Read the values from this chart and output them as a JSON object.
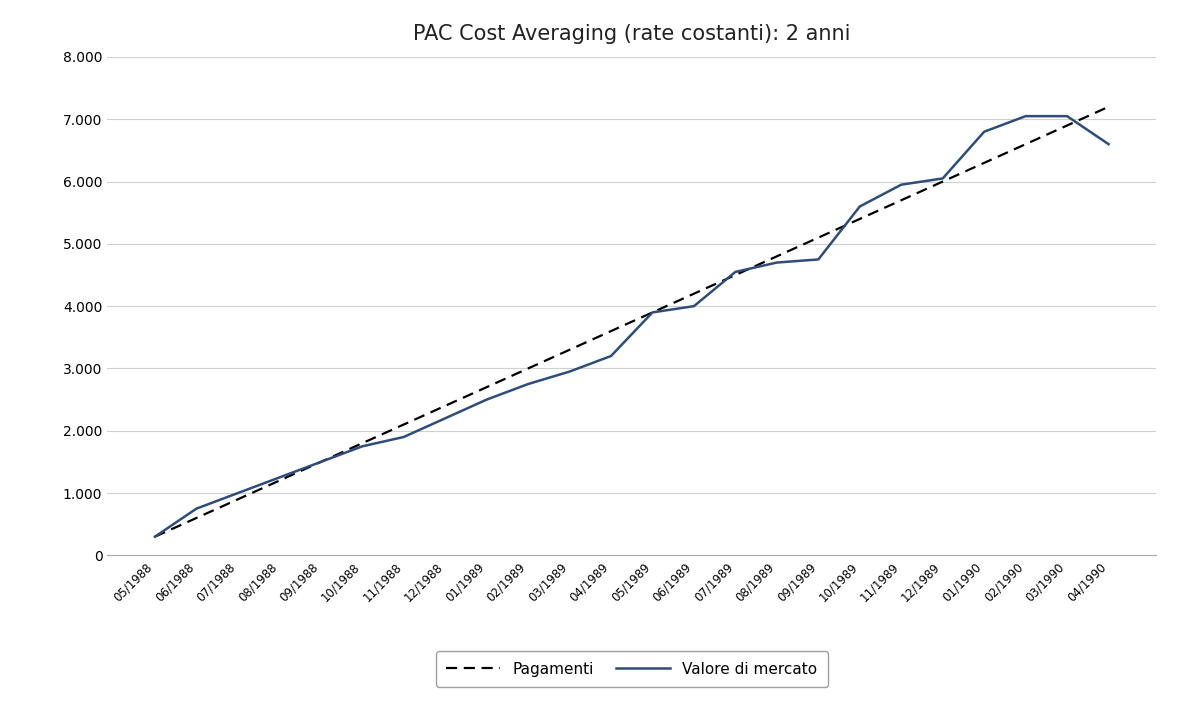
{
  "title": "PAC Cost Averaging (rate costanti): 2 anni",
  "x_labels": [
    "05/1988",
    "06/1988",
    "07/1988",
    "08/1988",
    "09/1988",
    "10/1988",
    "11/1988",
    "12/1988",
    "01/1989",
    "02/1989",
    "03/1989",
    "04/1989",
    "05/1989",
    "06/1989",
    "07/1989",
    "08/1989",
    "09/1989",
    "10/1989",
    "11/1989",
    "12/1989",
    "01/1990",
    "02/1990",
    "03/1990",
    "04/1990"
  ],
  "pagamenti": [
    300,
    600,
    900,
    1200,
    1500,
    1800,
    2100,
    2400,
    2700,
    3000,
    3300,
    3600,
    3900,
    4200,
    4500,
    4800,
    5100,
    5400,
    5700,
    6000,
    6300,
    6600,
    6900,
    7200
  ],
  "valore_mercato_values": [
    300,
    750,
    1000,
    1250,
    1500,
    1750,
    1900,
    2200,
    2500,
    2750,
    2950,
    3200,
    3900,
    4000,
    4550,
    4700,
    4750,
    5600,
    5950,
    6050,
    6800,
    7050,
    7050,
    6600
  ],
  "ylim": [
    0,
    8000
  ],
  "yticks": [
    0,
    1000,
    2000,
    3000,
    4000,
    5000,
    6000,
    7000,
    8000
  ],
  "line_color_mercato": "#2E4D7B",
  "line_color_pagamenti": "#000000",
  "legend_pagamenti": "Pagamenti",
  "legend_mercato": "Valore di mercato",
  "background_color": "#ffffff",
  "grid_color": "#d0d0d0",
  "title_fontsize": 15,
  "tick_label_fontsize": 8.5,
  "ytick_label_fontsize": 10
}
